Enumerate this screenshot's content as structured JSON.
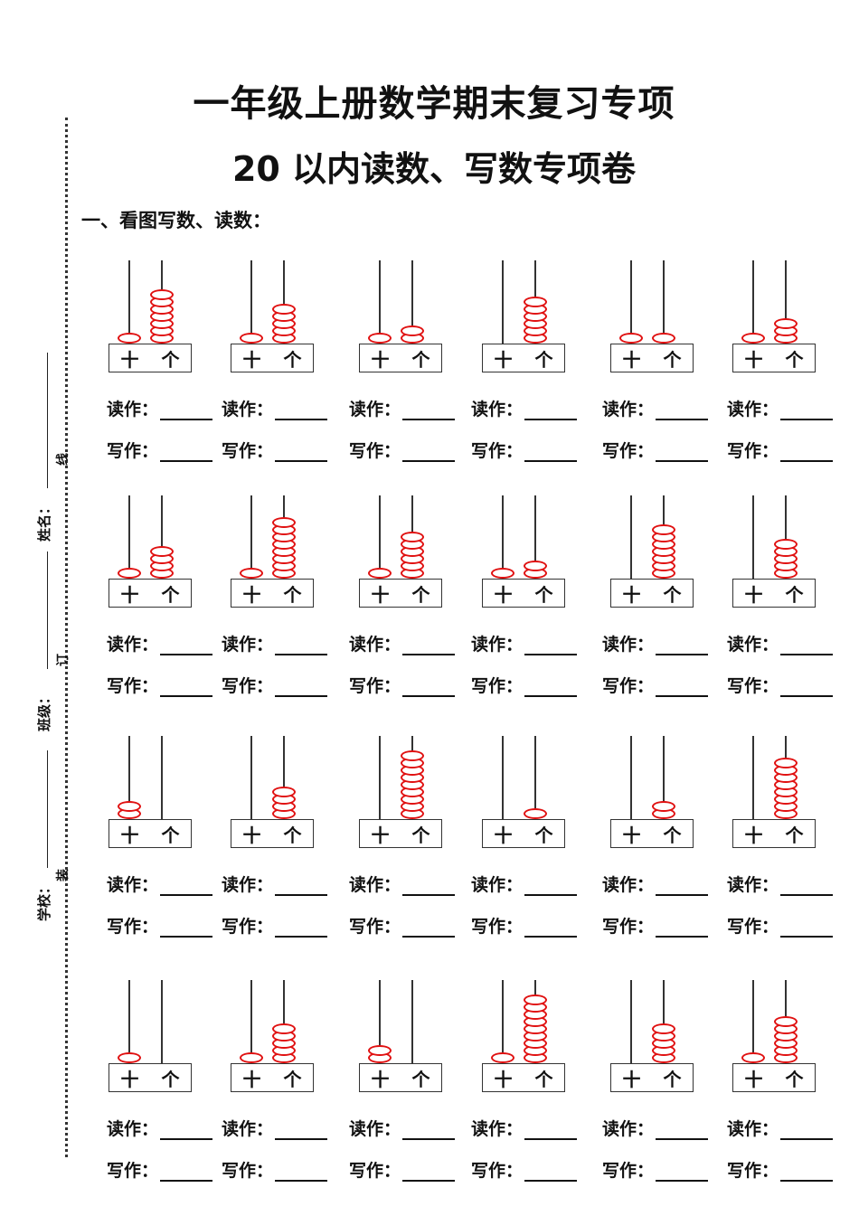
{
  "title": "一年级上册数学期末复习专项",
  "subtitle": "20 以内读数、写数专项卷",
  "section": "一、看图写数、读数：",
  "margin": {
    "school": "学校：",
    "class": "班级：",
    "name": "姓名：",
    "zhuang": "装",
    "ding": "订",
    "xian": "线"
  },
  "labels": {
    "read": "读作：",
    "write": "写作：",
    "tens": "十",
    "ones": "个"
  },
  "colors": {
    "bead": "#e01010"
  },
  "problems": [
    {
      "tens": 1,
      "ones": 7
    },
    {
      "tens": 1,
      "ones": 5
    },
    {
      "tens": 1,
      "ones": 2
    },
    {
      "tens": 0,
      "ones": 6
    },
    {
      "tens": 1,
      "ones": 1
    },
    {
      "tens": 1,
      "ones": 3
    },
    {
      "tens": 1,
      "ones": 4
    },
    {
      "tens": 1,
      "ones": 8
    },
    {
      "tens": 1,
      "ones": 6
    },
    {
      "tens": 1,
      "ones": 2
    },
    {
      "tens": 0,
      "ones": 7
    },
    {
      "tens": 0,
      "ones": 5
    },
    {
      "tens": 2,
      "ones": 0
    },
    {
      "tens": 0,
      "ones": 4
    },
    {
      "tens": 0,
      "ones": 9
    },
    {
      "tens": 0,
      "ones": 1
    },
    {
      "tens": 0,
      "ones": 2
    },
    {
      "tens": 0,
      "ones": 8
    },
    {
      "tens": 1,
      "ones": 0
    },
    {
      "tens": 1,
      "ones": 5
    },
    {
      "tens": 2,
      "ones": 0
    },
    {
      "tens": 1,
      "ones": 9
    },
    {
      "tens": 0,
      "ones": 5
    },
    {
      "tens": 1,
      "ones": 6
    }
  ]
}
